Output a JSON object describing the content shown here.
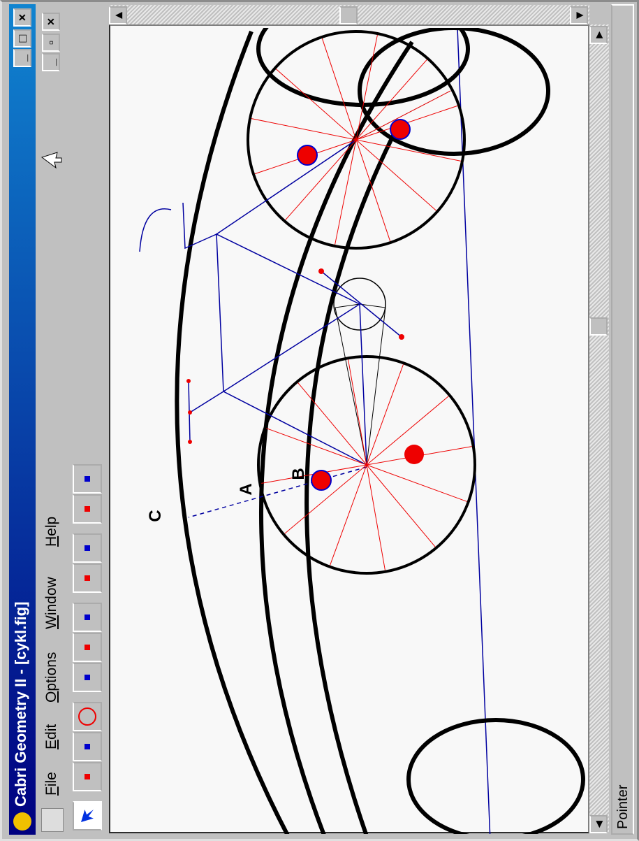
{
  "window": {
    "title": "Cabri Geometry II - [cykl.fig]",
    "menu": [
      "File",
      "Edit",
      "Options",
      "Window",
      "Help"
    ],
    "status": "Pointer"
  },
  "figure": {
    "labels": [
      "A",
      "B",
      "C"
    ]
  }
}
